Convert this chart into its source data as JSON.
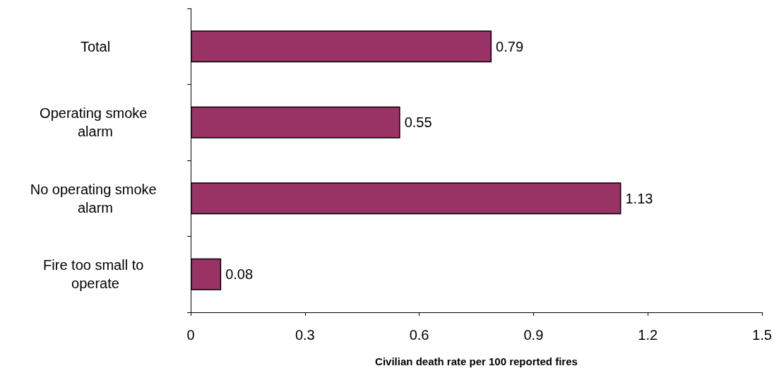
{
  "chart_data": {
    "type": "bar",
    "orientation": "horizontal",
    "xlabel": "Civilian death rate per 100 reported fires",
    "categories": [
      "Total",
      "Operating smoke alarm",
      "No operating smoke alarm",
      "Fire too small to operate"
    ],
    "values": [
      0.79,
      0.55,
      1.13,
      0.08
    ],
    "color": "#993366",
    "xlim": [
      0,
      1.5
    ],
    "xticks": [
      0,
      0.3,
      0.6,
      0.9,
      1.2,
      1.5
    ],
    "data_labels": true
  }
}
